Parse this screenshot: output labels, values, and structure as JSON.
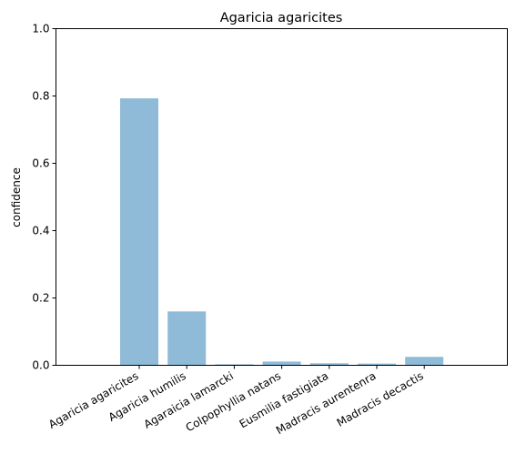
{
  "chart_data": {
    "type": "bar",
    "title": "Agaricia agaricites",
    "xlabel": "",
    "ylabel": "confidence",
    "categories": [
      "Agaricia agaricites",
      "Agaricia humilis",
      "Agaraicia lamarcki",
      "Colpophyllia natans",
      "Eusmilia fastigiata",
      "Madracis aurentenra",
      "Madracis decactis"
    ],
    "values": [
      0.793,
      0.16,
      0.003,
      0.011,
      0.006,
      0.005,
      0.025
    ],
    "ylim": [
      0,
      1.0
    ],
    "yticks": [
      "0.0",
      "0.2",
      "0.4",
      "0.6",
      "0.8",
      "1.0"
    ],
    "grid": false,
    "bar_color": "#8fbbd9"
  }
}
